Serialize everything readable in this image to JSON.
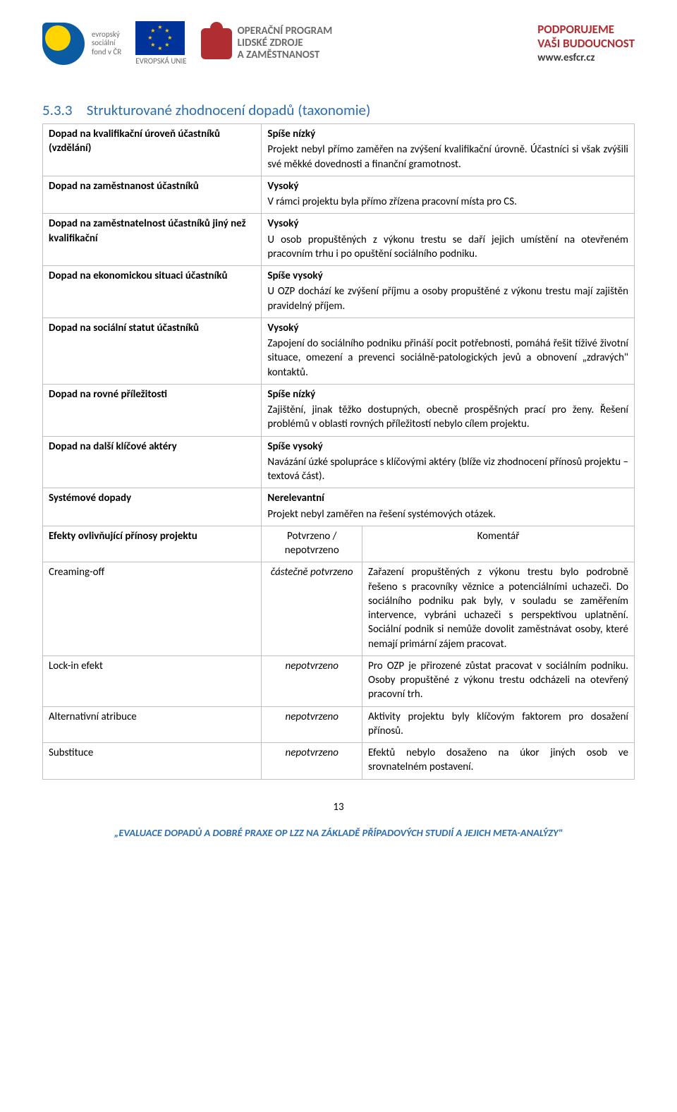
{
  "header": {
    "esf_label_1": "evropský",
    "esf_label_2": "sociální",
    "esf_label_3": "fond v ČR",
    "eu_label": "EVROPSKÁ UNIE",
    "oplzz_line1": "OPERAČNÍ PROGRAM",
    "oplzz_line2": "LIDSKÉ ZDROJE",
    "oplzz_line3": "A ZAMĚSTNANOST",
    "support_line1": "PODPORUJEME",
    "support_line2": "VAŠI BUDOUCNOST",
    "support_url": "www.esfcr.cz"
  },
  "section": {
    "number": "5.3.3",
    "title": "Strukturované zhodnocení dopadů (taxonomie)"
  },
  "rows": [
    {
      "label": "Dopad na kvalifikační úroveň účastníků (vzdělání)",
      "level": "Spíše nízký",
      "desc": "Projekt nebyl přímo zaměřen na zvýšení kvalifikační úrovně. Účastníci si však zvýšili své měkké dovednosti a finanční gramotnost."
    },
    {
      "label": "Dopad na zaměstnanost účastníků",
      "level": "Vysoký",
      "desc": "V rámci projektu byla přímo zřízena pracovní místa pro CS."
    },
    {
      "label": "Dopad na zaměstnatelnost účastníků jiný než kvalifikační",
      "level": "Vysoký",
      "desc": "U osob propuštěných z výkonu trestu se daří jejich umístění na otevřeném pracovním trhu i po opuštění sociálního podniku."
    },
    {
      "label": "Dopad na ekonomickou situaci účastníků",
      "level": "Spíše vysoký",
      "desc": "U OZP dochází ke zvýšení příjmu a osoby propuštěné z výkonu trestu mají zajištěn pravidelný příjem."
    },
    {
      "label": "Dopad na sociální statut účastníků",
      "level": "Vysoký",
      "desc": "Zapojení do sociálního podniku přináší pocit potřebnosti, pomáhá řešit tíživé životní situace, omezení a prevenci sociálně-patologických jevů a obnovení „zdravých\" kontaktů."
    },
    {
      "label": "Dopad na rovné příležitosti",
      "level": "Spíše nízký",
      "desc": "Zajištění, jinak těžko dostupných, obecně prospěšných prací pro ženy. Řešení problémů v oblasti rovných příležitostí nebylo cílem projektu."
    },
    {
      "label": "Dopad na další klíčové aktéry",
      "level": "Spíše vysoký",
      "desc": "Navázání úzké spolupráce s klíčovými aktéry (blíže viz zhodnocení přínosů projektu – textová část)."
    },
    {
      "label": "Systémové dopady",
      "level": "Nerelevantní",
      "desc": "Projekt nebyl zaměřen na řešení systémových otázek."
    }
  ],
  "effects_header": {
    "label": "Efekty ovlivňující přínosy projektu",
    "status": "Potvrzeno / nepotvrzeno",
    "comment": "Komentář"
  },
  "effects": [
    {
      "label": "Creaming-off",
      "status": "částečně potvrzeno",
      "comment": "Zařazení propuštěných z výkonu trestu bylo podrobně řešeno s pracovníky věznice a potenciálními uchazeči. Do sociálního podniku pak byly, v souladu se zaměřením intervence, vybráni uchazeči s perspektivou uplatnění. Sociální podnik si nemůže dovolit zaměstnávat osoby, které nemají primární zájem pracovat."
    },
    {
      "label": "Lock-in efekt",
      "status": "nepotvrzeno",
      "comment": "Pro OZP je přirozené zůstat pracovat v sociálním podniku. Osoby propuštěné z výkonu trestu odcházeli na otevřený pracovní trh."
    },
    {
      "label": "Alternativní atribuce",
      "status": "nepotvrzeno",
      "comment": "Aktivity projektu byly klíčovým faktorem pro dosažení přínosů."
    },
    {
      "label": "Substituce",
      "status": "nepotvrzeno",
      "comment": "Efektů nebylo dosaženo na úkor jiných osob ve srovnatelném postavení."
    }
  ],
  "page_number": "13",
  "footer_title": "„EVALUACE DOPADŮ A DOBRÉ PRAXE OP LZZ NA ZÁKLADĚ PŘÍPADOVÝCH STUDIÍ A JEJICH META-ANALÝZY\""
}
